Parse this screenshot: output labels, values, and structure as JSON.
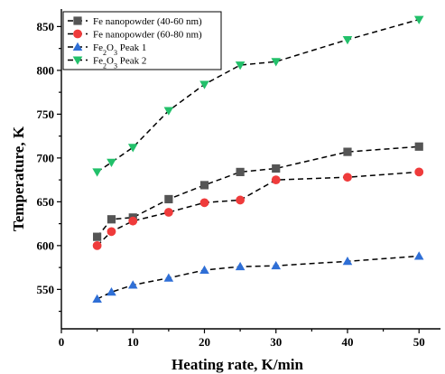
{
  "chart_data": {
    "type": "line",
    "xlabel": "Heating rate, K/min",
    "ylabel": "Temperature, K",
    "xlim": [
      0,
      53
    ],
    "ylim": [
      505,
      870
    ],
    "xticks": [
      "0",
      "10",
      "20",
      "30",
      "40",
      "50"
    ],
    "xtick_values": [
      0,
      10,
      20,
      30,
      40,
      50
    ],
    "yticks": [
      "550",
      "600",
      "650",
      "700",
      "750",
      "800",
      "850"
    ],
    "ytick_values": [
      550,
      600,
      650,
      700,
      750,
      800,
      850
    ],
    "legend_position": "top-left",
    "line_style": "dashed",
    "series": [
      {
        "name": "Fe nanopowder (40-60 nm)",
        "name_parts": [
          {
            "t": "Fe nanopowder (40-60 nm)",
            "sub": false
          }
        ],
        "marker": "square",
        "color": "#555555",
        "x": [
          5,
          7,
          10,
          15,
          20,
          25,
          30,
          40,
          50
        ],
        "y": [
          610,
          630,
          632,
          653,
          669,
          684,
          688,
          707,
          713
        ]
      },
      {
        "name": "Fe nanopowder (60-80 nm)",
        "name_parts": [
          {
            "t": "Fe nanopowder (60-80 nm)",
            "sub": false
          }
        ],
        "marker": "circle",
        "color": "#ef3b3b",
        "x": [
          5,
          7,
          10,
          15,
          20,
          25,
          30,
          40,
          50
        ],
        "y": [
          600,
          616,
          628,
          638,
          649,
          652,
          675,
          678,
          684
        ]
      },
      {
        "name": "Fe2O3 Peak 1",
        "name_parts": [
          {
            "t": "Fe",
            "sub": false
          },
          {
            "t": "2",
            "sub": true
          },
          {
            "t": "O",
            "sub": false
          },
          {
            "t": "3",
            "sub": true
          },
          {
            "t": " Peak 1",
            "sub": false
          }
        ],
        "marker": "triangle-up",
        "color": "#2f6fd6",
        "x": [
          5,
          7,
          10,
          15,
          20,
          25,
          30,
          40,
          50
        ],
        "y": [
          539,
          547,
          555,
          563,
          572,
          576,
          577,
          582,
          588
        ]
      },
      {
        "name": "Fe2O3 Peak 2",
        "name_parts": [
          {
            "t": "Fe",
            "sub": false
          },
          {
            "t": "2",
            "sub": true
          },
          {
            "t": "O",
            "sub": false
          },
          {
            "t": "3",
            "sub": true
          },
          {
            "t": " Peak 2",
            "sub": false
          }
        ],
        "marker": "triangle-down",
        "color": "#22c06a",
        "x": [
          5,
          7,
          10,
          15,
          20,
          25,
          30,
          40,
          50
        ],
        "y": [
          684,
          695,
          712,
          754,
          784,
          806,
          810,
          835,
          858
        ]
      }
    ]
  }
}
